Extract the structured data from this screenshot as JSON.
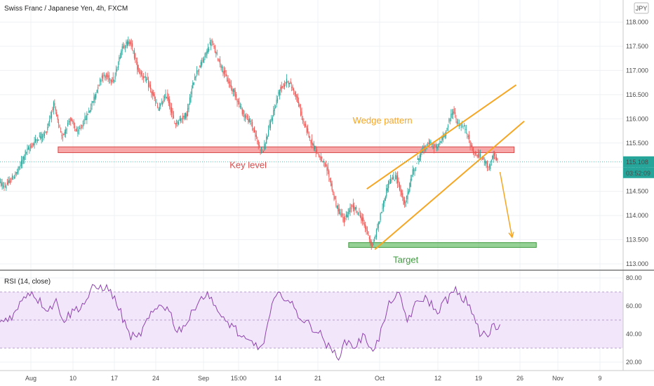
{
  "chart_data": {
    "type": "candlestick",
    "title": "Swiss Franc / Japanese Yen, 4h, FXCM",
    "currency_badge": "JPY",
    "price_axis": {
      "ticks": [
        "118.000",
        "117.500",
        "117.000",
        "116.500",
        "116.000",
        "115.500",
        "115.000",
        "114.500",
        "114.000",
        "113.500",
        "113.000"
      ],
      "range": [
        112.85,
        118.25
      ]
    },
    "time_axis": {
      "labels": [
        "Aug",
        "10",
        "17",
        "24",
        "Sep",
        "15:00",
        "14",
        "21",
        "Oct",
        "12",
        "19",
        "26",
        "Nov",
        "9"
      ]
    },
    "price_path": [
      [
        -2,
        114.7
      ],
      [
        0,
        114.6
      ],
      [
        3,
        114.9
      ],
      [
        5,
        115.3
      ],
      [
        8,
        115.6
      ],
      [
        10,
        115.7
      ],
      [
        12,
        116.3
      ],
      [
        14,
        115.6
      ],
      [
        16,
        116.0
      ],
      [
        18,
        115.7
      ],
      [
        21,
        116.2
      ],
      [
        24,
        116.9
      ],
      [
        27,
        116.8
      ],
      [
        29,
        117.5
      ],
      [
        31,
        117.6
      ],
      [
        33,
        117.0
      ],
      [
        35,
        116.8
      ],
      [
        38,
        116.2
      ],
      [
        40,
        116.5
      ],
      [
        42,
        115.9
      ],
      [
        45,
        116.1
      ],
      [
        47,
        116.9
      ],
      [
        49,
        117.2
      ],
      [
        51,
        117.6
      ],
      [
        53,
        117.2
      ],
      [
        55,
        116.8
      ],
      [
        57,
        116.5
      ],
      [
        59,
        116.1
      ],
      [
        61,
        115.9
      ],
      [
        63,
        115.4
      ],
      [
        64,
        115.35
      ],
      [
        66,
        116.0
      ],
      [
        68,
        116.6
      ],
      [
        70,
        116.8
      ],
      [
        72,
        116.5
      ],
      [
        74,
        115.9
      ],
      [
        76,
        115.5
      ],
      [
        78,
        115.2
      ],
      [
        80,
        114.9
      ],
      [
        82,
        114.2
      ],
      [
        84,
        113.9
      ],
      [
        86,
        114.2
      ],
      [
        88,
        114.0
      ],
      [
        90,
        113.6
      ],
      [
        91,
        113.35
      ],
      [
        93,
        114.0
      ],
      [
        95,
        114.7
      ],
      [
        97,
        114.8
      ],
      [
        99,
        114.2
      ],
      [
        101,
        114.9
      ],
      [
        103,
        115.3
      ],
      [
        105,
        115.5
      ],
      [
        107,
        115.4
      ],
      [
        109,
        115.7
      ],
      [
        111,
        116.2
      ],
      [
        112,
        115.9
      ],
      [
        114,
        115.8
      ],
      [
        116,
        115.3
      ],
      [
        118,
        115.2
      ],
      [
        120,
        115.0
      ],
      [
        121,
        115.25
      ],
      [
        122,
        115.1
      ]
    ],
    "current_price": "115.108",
    "countdown": "03:52:09",
    "annotations": {
      "key_level": {
        "label": "Key level",
        "price_low": 115.3,
        "price_high": 115.42,
        "color": "#f26d6d"
      },
      "wedge": {
        "label": "Wedge pattern",
        "color": "#f5a623",
        "upper_line": [
          [
            89,
            114.55
          ],
          [
            126,
            116.7
          ]
        ],
        "lower_line": [
          [
            91,
            113.3
          ],
          [
            128,
            115.95
          ]
        ]
      },
      "target": {
        "label": "Target",
        "price_low": 113.34,
        "price_high": 113.44,
        "color": "#5cb85c"
      },
      "projection_arrow": {
        "from": [
          122,
          114.9
        ],
        "to": [
          125,
          113.55
        ]
      }
    },
    "indicator": {
      "name": "RSI (14, close)",
      "ticks": [
        "80.00",
        "60.00",
        "40.00",
        "20.00"
      ],
      "range": [
        15,
        85
      ],
      "band": [
        30,
        70
      ],
      "path": [
        [
          -2,
          48
        ],
        [
          2,
          55
        ],
        [
          4,
          68
        ],
        [
          6,
          70
        ],
        [
          8,
          63
        ],
        [
          10,
          58
        ],
        [
          12,
          63
        ],
        [
          14,
          50
        ],
        [
          16,
          56
        ],
        [
          19,
          62
        ],
        [
          21,
          72
        ],
        [
          24,
          74
        ],
        [
          26,
          68
        ],
        [
          28,
          55
        ],
        [
          30,
          40
        ],
        [
          32,
          36
        ],
        [
          35,
          51
        ],
        [
          38,
          62
        ],
        [
          40,
          57
        ],
        [
          42,
          42
        ],
        [
          45,
          50
        ],
        [
          47,
          64
        ],
        [
          49,
          68
        ],
        [
          51,
          64
        ],
        [
          53,
          50
        ],
        [
          56,
          46
        ],
        [
          58,
          36
        ],
        [
          60,
          34
        ],
        [
          62,
          32
        ],
        [
          63,
          29
        ],
        [
          64,
          42
        ],
        [
          66,
          64
        ],
        [
          68,
          69
        ],
        [
          70,
          62
        ],
        [
          72,
          54
        ],
        [
          74,
          48
        ],
        [
          76,
          44
        ],
        [
          78,
          38
        ],
        [
          80,
          28
        ],
        [
          82,
          25
        ],
        [
          84,
          35
        ],
        [
          86,
          31
        ],
        [
          88,
          38
        ],
        [
          90,
          32
        ],
        [
          91,
          29
        ],
        [
          93,
          46
        ],
        [
          95,
          65
        ],
        [
          97,
          67
        ],
        [
          99,
          50
        ],
        [
          101,
          60
        ],
        [
          103,
          66
        ],
        [
          105,
          62
        ],
        [
          106,
          55
        ],
        [
          108,
          62
        ],
        [
          110,
          68
        ],
        [
          111,
          71
        ],
        [
          112,
          66
        ],
        [
          114,
          63
        ],
        [
          116,
          50
        ],
        [
          117,
          38
        ],
        [
          118,
          42
        ],
        [
          119,
          36
        ],
        [
          120,
          46
        ],
        [
          121,
          44
        ],
        [
          122,
          44
        ]
      ]
    },
    "grid": true
  }
}
